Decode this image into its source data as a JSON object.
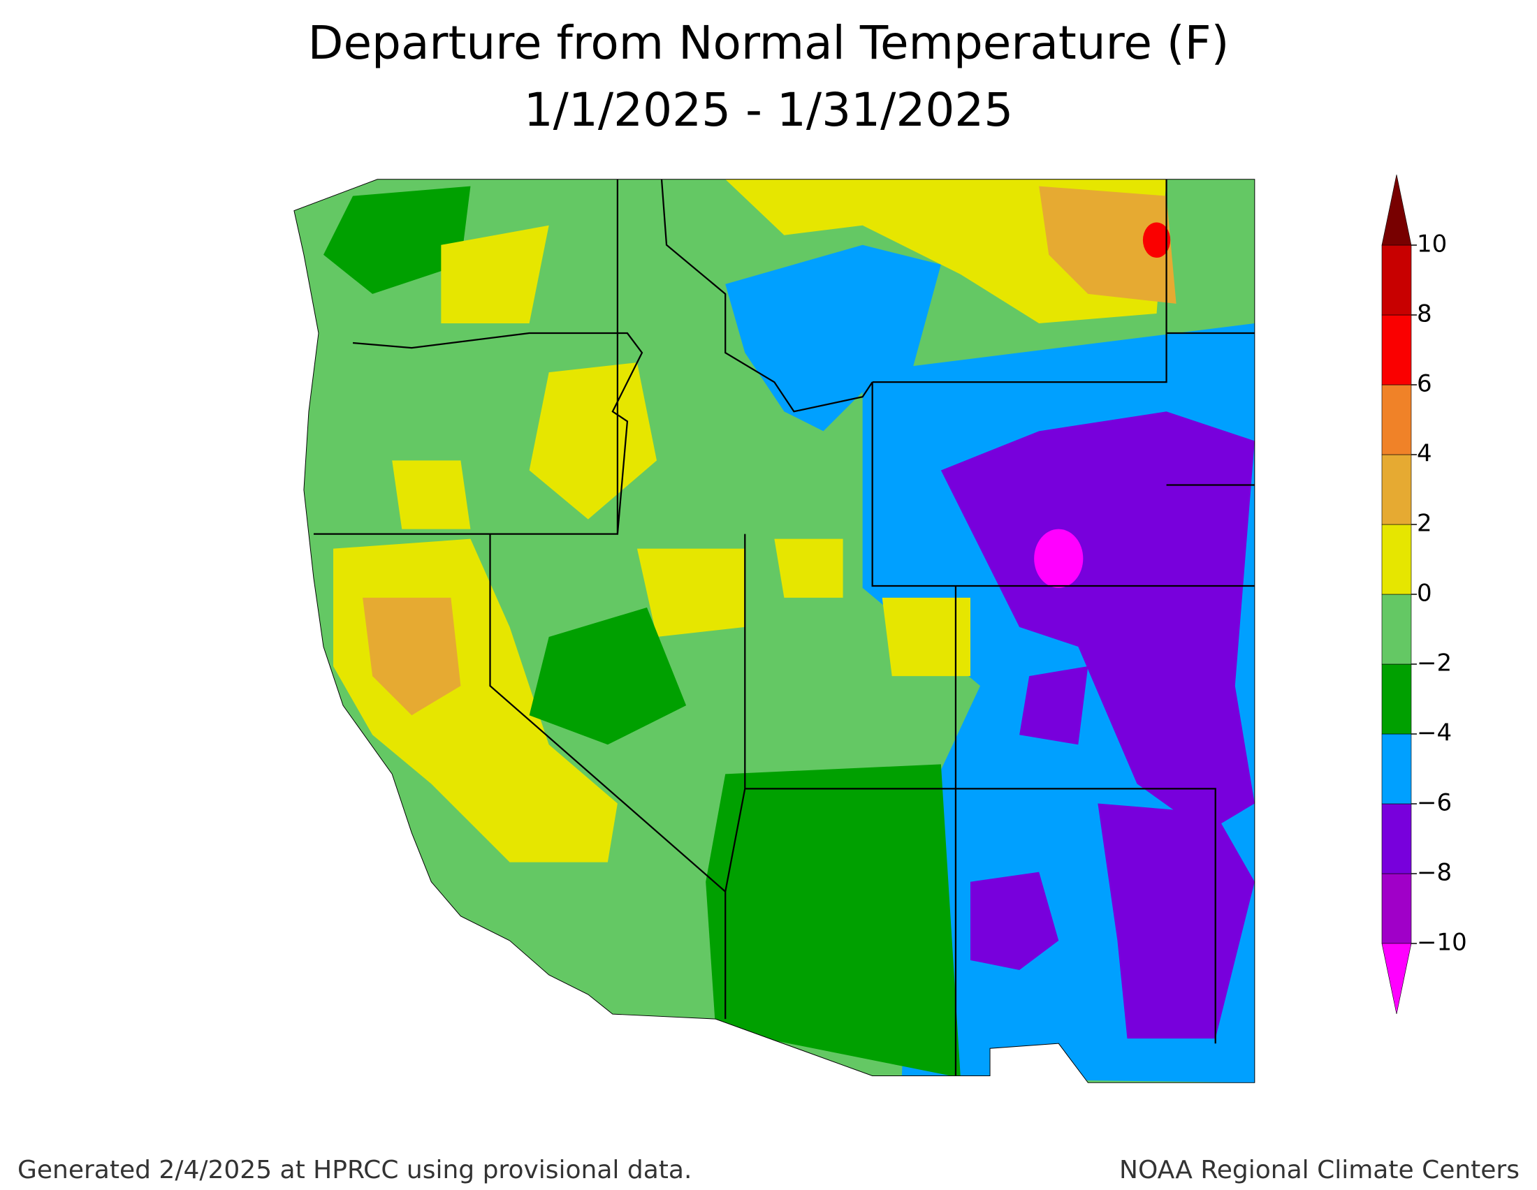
{
  "header": {
    "title": "Departure from Normal Temperature (F)",
    "subtitle": "1/1/2025 - 1/31/2025"
  },
  "legend": {
    "lim": [
      -10,
      10
    ],
    "ticks": [
      {
        "value": -10,
        "label": "−10"
      },
      {
        "value": -8,
        "label": "−8"
      },
      {
        "value": -6,
        "label": "−6"
      },
      {
        "value": -4,
        "label": "−4"
      },
      {
        "value": -2,
        "label": "−2"
      },
      0,
      2,
      4,
      6,
      8,
      10
    ],
    "colors": [
      "#a000c8",
      "#7800dc",
      "#00a0ff",
      "#00a000",
      "#64c864",
      "#e6e600",
      "#e6aa32",
      "#f08228",
      "#fa0000",
      "#c80000"
    ],
    "under_color": "#ff00ff",
    "over_color": "#780000"
  },
  "footer": {
    "left": "Generated 2/4/2025 at HPRCC using provisional data.",
    "right": "NOAA Regional Climate Centers"
  }
}
